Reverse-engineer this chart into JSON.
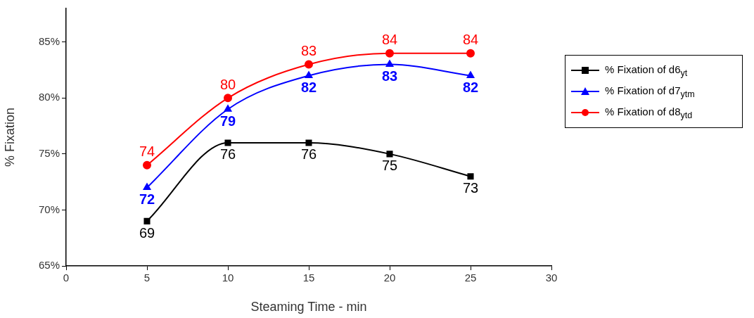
{
  "chart_data": {
    "type": "line",
    "xlabel": "Steaming Time - min",
    "ylabel": "% Fixation",
    "x": [
      5,
      10,
      15,
      20,
      25
    ],
    "series": [
      {
        "name": "% Fixation of d6$_{yt}$",
        "color": "#000000",
        "marker": "square",
        "values": [
          69,
          76,
          76,
          75,
          73
        ]
      },
      {
        "name": "% Fixation of d7$_{ytm}$",
        "color": "#0000ff",
        "marker": "triangle",
        "values": [
          72,
          79,
          82,
          83,
          82
        ]
      },
      {
        "name": "% Fixation of d8$_{ytd}$",
        "color": "#ff0000",
        "marker": "circle",
        "values": [
          74,
          80,
          83,
          84,
          84
        ]
      }
    ],
    "xlim": [
      0,
      30
    ],
    "xticks": [
      0,
      5,
      10,
      15,
      20,
      25,
      30
    ],
    "ylim": [
      65,
      88
    ],
    "yticks": [
      {
        "value": 65,
        "label": "65%"
      },
      {
        "value": 70,
        "label": "70%"
      },
      {
        "value": 75,
        "label": "75%"
      },
      {
        "value": 80,
        "label": "80%"
      },
      {
        "value": 85,
        "label": "85%"
      }
    ],
    "grid": false,
    "legend": "right",
    "data_labels": true
  }
}
